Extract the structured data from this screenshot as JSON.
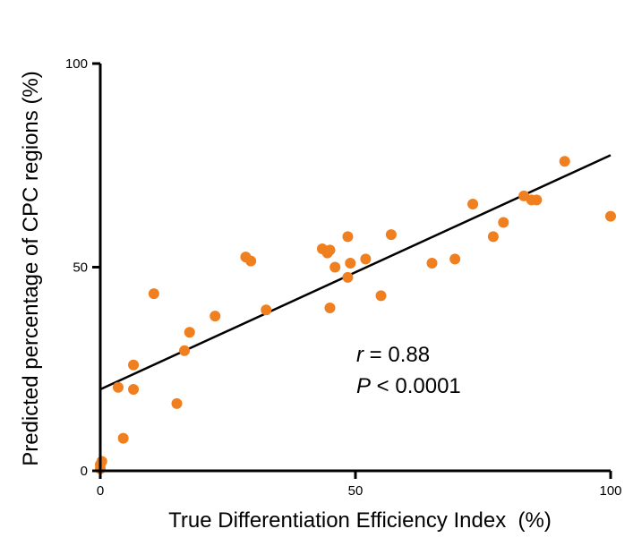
{
  "chart_data": {
    "type": "scatter",
    "title": "",
    "xlabel": "True Differentiation Efficiency Index  (%)",
    "ylabel": "Predicted percentage of CPC regions (%)",
    "xlim": [
      0,
      100
    ],
    "ylim": [
      0,
      100
    ],
    "x_ticks": [
      "0",
      "50",
      "100"
    ],
    "y_ticks": [
      "0",
      "50",
      "100"
    ],
    "grid": false,
    "point_color": "#f07f1f",
    "line_color": "#000000",
    "points": [
      {
        "x": 0,
        "y": 0.5
      },
      {
        "x": 0,
        "y": 1.5
      },
      {
        "x": 0.3,
        "y": 2.3
      },
      {
        "x": 3.5,
        "y": 20.5
      },
      {
        "x": 4.5,
        "y": 8
      },
      {
        "x": 6.5,
        "y": 26
      },
      {
        "x": 6.5,
        "y": 20
      },
      {
        "x": 10.5,
        "y": 43.5
      },
      {
        "x": 15,
        "y": 16.5
      },
      {
        "x": 16.5,
        "y": 29.5
      },
      {
        "x": 17.5,
        "y": 34
      },
      {
        "x": 22.5,
        "y": 38
      },
      {
        "x": 28.5,
        "y": 52.5
      },
      {
        "x": 29.5,
        "y": 51.5
      },
      {
        "x": 32.5,
        "y": 39.5
      },
      {
        "x": 43.5,
        "y": 54.5
      },
      {
        "x": 44.5,
        "y": 53.5
      },
      {
        "x": 45,
        "y": 54.2
      },
      {
        "x": 45,
        "y": 40
      },
      {
        "x": 46,
        "y": 50
      },
      {
        "x": 48.5,
        "y": 57.5
      },
      {
        "x": 48.5,
        "y": 47.5
      },
      {
        "x": 49,
        "y": 51
      },
      {
        "x": 52,
        "y": 52
      },
      {
        "x": 55,
        "y": 43
      },
      {
        "x": 57,
        "y": 58
      },
      {
        "x": 65,
        "y": 51
      },
      {
        "x": 69.5,
        "y": 52
      },
      {
        "x": 73,
        "y": 65.5
      },
      {
        "x": 77,
        "y": 57.5
      },
      {
        "x": 79,
        "y": 61
      },
      {
        "x": 83,
        "y": 67.5
      },
      {
        "x": 84.5,
        "y": 66.5
      },
      {
        "x": 85.5,
        "y": 66.5
      },
      {
        "x": 91,
        "y": 76
      },
      {
        "x": 100,
        "y": 62.5
      }
    ],
    "fit_line": {
      "x": [
        0,
        100
      ],
      "y": [
        20,
        77.5
      ]
    },
    "annotation": {
      "r_symbol": "r",
      "r_value": " = 0.88",
      "p_symbol": "P",
      "p_value": " < 0.0001"
    }
  }
}
